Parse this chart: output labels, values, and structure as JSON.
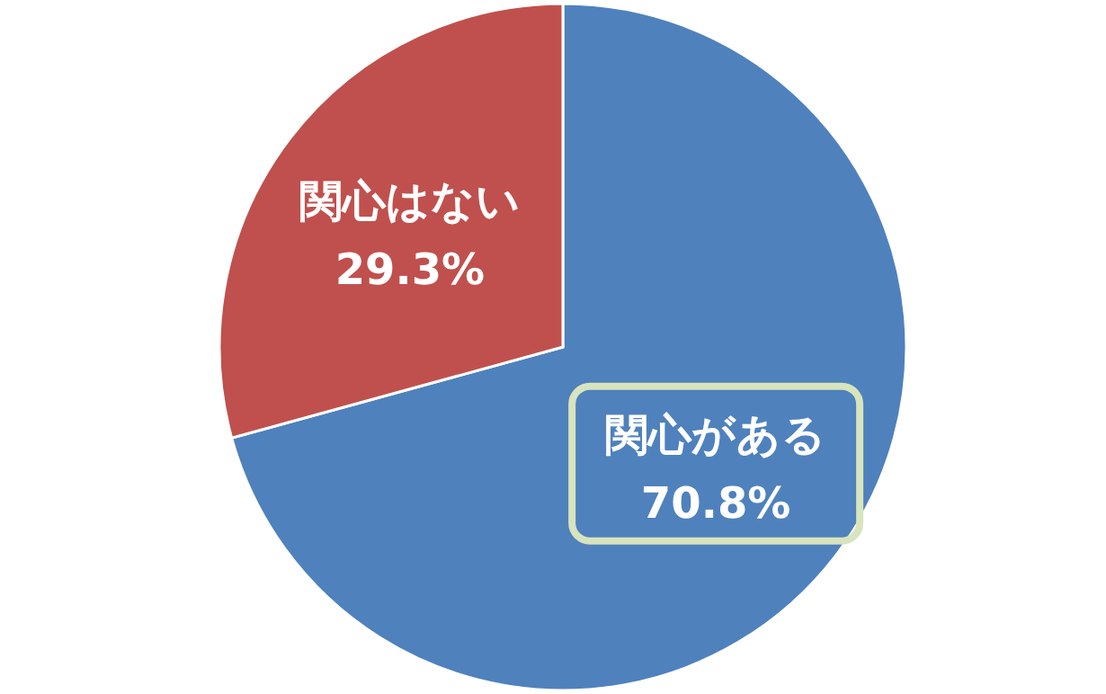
{
  "chart_data": {
    "type": "pie",
    "categories": [
      "関心がある",
      "関心はない"
    ],
    "values": [
      70.8,
      29.3
    ],
    "colors": [
      "#4f81bd",
      "#c0504d"
    ],
    "value_labels": [
      "70.8%",
      "29.3%"
    ]
  }
}
